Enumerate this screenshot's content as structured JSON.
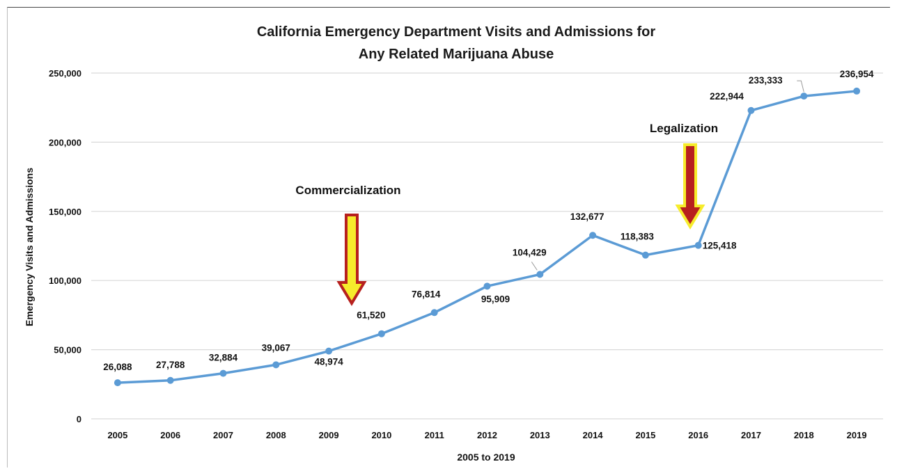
{
  "chart_data": {
    "type": "line",
    "title": [
      "California Emergency Department Visits and Admissions for",
      "Any Related Marijuana Abuse"
    ],
    "xlabel": "2005 to 2019",
    "ylabel": "Emergency Visits and Admissions",
    "categories": [
      "2005",
      "2006",
      "2007",
      "2008",
      "2009",
      "2010",
      "2011",
      "2012",
      "2013",
      "2014",
      "2015",
      "2016",
      "2017",
      "2018",
      "2019"
    ],
    "values": [
      26088,
      27788,
      32884,
      39067,
      48974,
      61520,
      76814,
      95909,
      104429,
      132677,
      118383,
      125418,
      222944,
      233333,
      236954
    ],
    "data_labels": [
      "26,088",
      "27,788",
      "32,884",
      "39,067",
      "48,974",
      "61,520",
      "76,814",
      "95,909",
      "104,429",
      "132,677",
      "118,383",
      "125,418",
      "222,944",
      "233,333",
      "236,954"
    ],
    "ylim": [
      0,
      250000
    ],
    "yticks": [
      0,
      50000,
      100000,
      150000,
      200000,
      250000
    ],
    "ytick_labels": [
      "0",
      "50,000",
      "100,000",
      "150,000",
      "200,000",
      "250,000"
    ],
    "grid": true,
    "line_color": "#5b9bd5",
    "annotations": [
      {
        "text": "Commercialization",
        "x": "2009",
        "arrow_fill": "#f6ec2c",
        "arrow_border": "#b7201e"
      },
      {
        "text": "Legalization",
        "x": "2016",
        "arrow_fill": "#b7201e",
        "arrow_border": "#f6ec2c"
      }
    ]
  }
}
